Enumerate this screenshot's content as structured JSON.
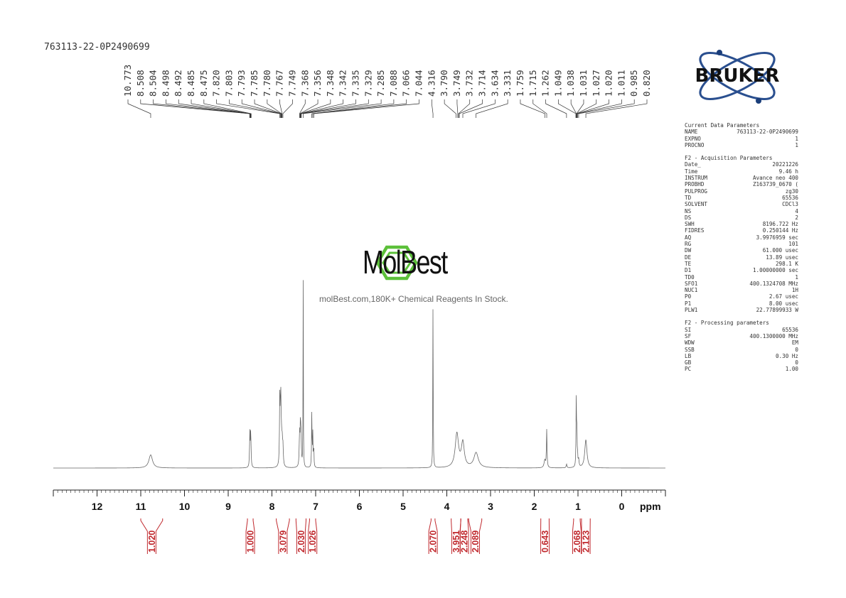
{
  "sample_id": "763113-22-0P2490699",
  "watermark": {
    "brand": "MolBest",
    "tagline": "molBest.com,180K+ Chemical Reagents In Stock."
  },
  "bruker": {
    "logo_text": "BRUKER",
    "accent": "#2a4f8f",
    "dot_color": "#1b3e7a"
  },
  "parameters": {
    "current": {
      "title": "Current Data Parameters",
      "rows": [
        {
          "key": "NAME",
          "value": "763113-22-0P2490699"
        },
        {
          "key": "EXPNO",
          "value": "1"
        },
        {
          "key": "PROCNO",
          "value": "1"
        }
      ]
    },
    "acquisition": {
      "title": "F2 - Acquisition Parameters",
      "rows": [
        {
          "key": "Date_",
          "value": "20221226"
        },
        {
          "key": "Time",
          "value": "9.46 h"
        },
        {
          "key": "INSTRUM",
          "value": "Avance neo 400"
        },
        {
          "key": "PROBHD",
          "value": "Z163739_0670 ("
        },
        {
          "key": "PULPROG",
          "value": "zg30"
        },
        {
          "key": "TD",
          "value": "65536"
        },
        {
          "key": "SOLVENT",
          "value": "CDCl3"
        },
        {
          "key": "NS",
          "value": "4"
        },
        {
          "key": "DS",
          "value": "2"
        },
        {
          "key": "SWH",
          "value": "8196.722 Hz"
        },
        {
          "key": "FIDRES",
          "value": "0.250144 Hz"
        },
        {
          "key": "AQ",
          "value": "3.9976959 sec"
        },
        {
          "key": "RG",
          "value": "101"
        },
        {
          "key": "DW",
          "value": "61.000 usec"
        },
        {
          "key": "DE",
          "value": "13.89 usec"
        },
        {
          "key": "TE",
          "value": "298.1 K"
        },
        {
          "key": "D1",
          "value": "1.00000000 sec"
        },
        {
          "key": "TD0",
          "value": "1"
        },
        {
          "key": "SFO1",
          "value": "400.1324708 MHz"
        },
        {
          "key": "NUC1",
          "value": "1H"
        },
        {
          "key": "P0",
          "value": "2.67 usec"
        },
        {
          "key": "P1",
          "value": "8.00 usec"
        },
        {
          "key": "PLW1",
          "value": "22.77899933 W"
        }
      ]
    },
    "processing": {
      "title": "F2 - Processing parameters",
      "rows": [
        {
          "key": "SI",
          "value": "65536"
        },
        {
          "key": "SF",
          "value": "400.1300000 MHz"
        },
        {
          "key": "WDW",
          "value": "EM"
        },
        {
          "key": "SSB",
          "value": "0"
        },
        {
          "key": "LB",
          "value": "0.30 Hz"
        },
        {
          "key": "GB",
          "value": "0"
        },
        {
          "key": "PC",
          "value": "1.00"
        }
      ]
    }
  },
  "chart_data": {
    "type": "line",
    "xlabel": "ppm",
    "xlim": [
      13.0,
      -1.0
    ],
    "x_reversed": true,
    "x_ticks": [
      12,
      11,
      10,
      9,
      8,
      7,
      6,
      5,
      4,
      3,
      2,
      1,
      0
    ],
    "peak_labels": [
      "10.773",
      "8.508",
      "8.504",
      "8.498",
      "8.492",
      "8.485",
      "8.475",
      "7.820",
      "7.803",
      "7.793",
      "7.785",
      "7.780",
      "7.767",
      "7.749",
      "7.368",
      "7.356",
      "7.348",
      "7.342",
      "7.335",
      "7.329",
      "7.285",
      "7.088",
      "7.066",
      "7.044",
      "4.316",
      "3.790",
      "3.749",
      "3.732",
      "3.714",
      "3.634",
      "3.331",
      "1.759",
      "1.715",
      "1.262",
      "1.049",
      "1.038",
      "1.031",
      "1.027",
      "1.020",
      "1.011",
      "0.985",
      "0.820"
    ],
    "peaks": [
      {
        "ppm": 10.773,
        "height": 0.07,
        "width": 0.05
      },
      {
        "ppm": 8.505,
        "height": 0.18,
        "width": 0.008
      },
      {
        "ppm": 8.485,
        "height": 0.19,
        "width": 0.008
      },
      {
        "ppm": 7.82,
        "height": 0.36,
        "width": 0.008
      },
      {
        "ppm": 7.8,
        "height": 0.37,
        "width": 0.008
      },
      {
        "ppm": 7.785,
        "height": 0.14,
        "width": 0.01
      },
      {
        "ppm": 7.767,
        "height": 0.12,
        "width": 0.01
      },
      {
        "ppm": 7.749,
        "height": 0.1,
        "width": 0.01
      },
      {
        "ppm": 7.368,
        "height": 0.17,
        "width": 0.009
      },
      {
        "ppm": 7.348,
        "height": 0.2,
        "width": 0.009
      },
      {
        "ppm": 7.335,
        "height": 0.14,
        "width": 0.009
      },
      {
        "ppm": 7.285,
        "height": 1.0,
        "width": 0.004
      },
      {
        "ppm": 7.088,
        "height": 0.3,
        "width": 0.006
      },
      {
        "ppm": 7.066,
        "height": 0.18,
        "width": 0.006
      },
      {
        "ppm": 7.044,
        "height": 0.12,
        "width": 0.006
      },
      {
        "ppm": 4.316,
        "height": 0.88,
        "width": 0.005
      },
      {
        "ppm": 3.77,
        "height": 0.18,
        "width": 0.045
      },
      {
        "ppm": 3.634,
        "height": 0.13,
        "width": 0.04
      },
      {
        "ppm": 3.331,
        "height": 0.08,
        "width": 0.06
      },
      {
        "ppm": 1.759,
        "height": 0.04,
        "width": 0.02
      },
      {
        "ppm": 1.715,
        "height": 0.2,
        "width": 0.008
      },
      {
        "ppm": 1.262,
        "height": 0.02,
        "width": 0.01
      },
      {
        "ppm": 1.04,
        "height": 0.35,
        "width": 0.006
      },
      {
        "ppm": 1.027,
        "height": 0.2,
        "width": 0.006
      },
      {
        "ppm": 1.011,
        "height": 0.06,
        "width": 0.008
      },
      {
        "ppm": 0.985,
        "height": 0.04,
        "width": 0.01
      },
      {
        "ppm": 0.82,
        "height": 0.15,
        "width": 0.03
      }
    ],
    "integrals": [
      {
        "value": "1.020",
        "from": 11.0,
        "to": 10.5
      },
      {
        "value": "1.000",
        "from": 8.56,
        "to": 8.43
      },
      {
        "value": "3.079",
        "from": 7.9,
        "to": 7.6
      },
      {
        "value": "2.030",
        "from": 7.45,
        "to": 7.22
      },
      {
        "value": "1.026",
        "from": 7.14,
        "to": 7.0
      },
      {
        "value": "2.070",
        "from": 4.36,
        "to": 4.27
      },
      {
        "value": "3.951",
        "from": 3.9,
        "to": 3.68
      },
      {
        "value": "2.248",
        "from": 3.68,
        "to": 3.52
      },
      {
        "value": "2.089",
        "from": 3.5,
        "to": 3.2
      },
      {
        "value": "0.643",
        "from": 1.85,
        "to": 1.66
      },
      {
        "value": "2.068",
        "from": 1.1,
        "to": 0.95
      },
      {
        "value": "2.123",
        "from": 0.92,
        "to": 0.72
      }
    ],
    "spectrum_color": "#666666",
    "integral_color": "#c0282d"
  }
}
